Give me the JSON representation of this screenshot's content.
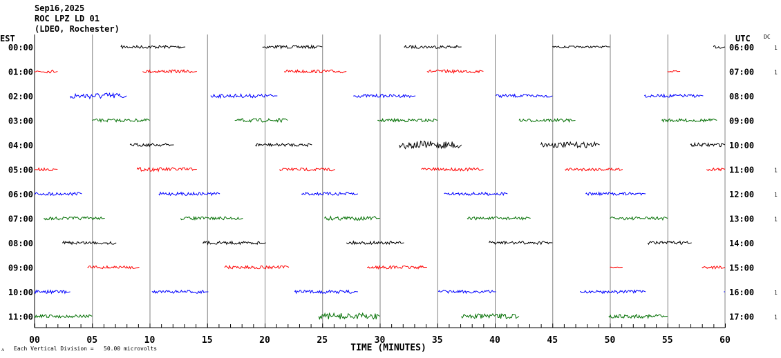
{
  "header": {
    "date": "Sep16,2025",
    "station": "ROC LPZ LD 01",
    "network": "(LDEO, Rochester)"
  },
  "left_axis_label": "EST",
  "right_axis_label": "UTC",
  "dc_label": "DC",
  "footer": {
    "scale_text": "Each Vertical Division =   50.00 microvolts",
    "corner_mark": "ᴧ"
  },
  "colors": {
    "trace_cycle": [
      "#000000",
      "#ff0000",
      "#0000ff",
      "#006e00"
    ],
    "grid": "#808080"
  },
  "chart_data": {
    "type": "line",
    "title": "ROC LPZ LD 01 helicorder",
    "xlabel": "TIME (MINUTES)",
    "xlim": [
      0,
      60
    ],
    "x_ticks": [
      "00",
      "05",
      "10",
      "15",
      "20",
      "25",
      "30",
      "35",
      "40",
      "45",
      "50",
      "55",
      "60"
    ],
    "rows": [
      {
        "est": "00:00",
        "utc": "06:00",
        "dc": "1",
        "segments": [
          [
            7.5,
            13.1,
            1
          ],
          [
            19.8,
            25,
            1
          ],
          [
            32.1,
            37.1,
            1
          ],
          [
            45,
            50,
            0.6
          ],
          [
            59,
            60,
            1
          ]
        ]
      },
      {
        "est": "01:00",
        "utc": "07:00",
        "dc": "1",
        "segments": [
          [
            0,
            2,
            1
          ],
          [
            9.4,
            14.1,
            1
          ],
          [
            21.7,
            27.1,
            1
          ],
          [
            34.1,
            39,
            1
          ],
          [
            55,
            56.1,
            0.5
          ]
        ]
      },
      {
        "est": "02:00",
        "utc": "08:00",
        "dc": "",
        "segments": [
          [
            3.1,
            8,
            2
          ],
          [
            15.3,
            21.1,
            1.2
          ],
          [
            27.7,
            33.1,
            1
          ],
          [
            40.1,
            45,
            1
          ],
          [
            53,
            58.1,
            1
          ]
        ]
      },
      {
        "est": "03:00",
        "utc": "09:00",
        "dc": "",
        "segments": [
          [
            5,
            10,
            1
          ],
          [
            17.4,
            22,
            1.2
          ],
          [
            29.8,
            35,
            1
          ],
          [
            42.1,
            47,
            1
          ],
          [
            54.5,
            59.3,
            1
          ]
        ]
      },
      {
        "est": "04:00",
        "utc": "10:00",
        "dc": "",
        "segments": [
          [
            8.3,
            12.1,
            1
          ],
          [
            19.2,
            24.1,
            1
          ],
          [
            31.7,
            37.1,
            2.5
          ],
          [
            44,
            49.1,
            1.8
          ],
          [
            57,
            60,
            1.2
          ]
        ]
      },
      {
        "est": "05:00",
        "utc": "11:00",
        "dc": "1",
        "segments": [
          [
            0,
            2,
            1
          ],
          [
            8.9,
            14.1,
            1.2
          ],
          [
            21.3,
            26.1,
            1
          ],
          [
            33.6,
            39,
            1
          ],
          [
            46.1,
            51.1,
            1
          ],
          [
            58.4,
            60,
            1
          ]
        ]
      },
      {
        "est": "06:00",
        "utc": "12:00",
        "dc": "1",
        "segments": [
          [
            0,
            4.1,
            1
          ],
          [
            10.8,
            16.1,
            1
          ],
          [
            23.2,
            28.1,
            1
          ],
          [
            35.6,
            41.1,
            1
          ],
          [
            47.9,
            53.1,
            1
          ]
        ]
      },
      {
        "est": "07:00",
        "utc": "13:00",
        "dc": "1",
        "segments": [
          [
            0.8,
            6.1,
            1
          ],
          [
            12.7,
            18.1,
            1
          ],
          [
            25.2,
            30,
            1.3
          ],
          [
            37.6,
            43.1,
            1
          ],
          [
            50,
            55,
            1
          ]
        ]
      },
      {
        "est": "08:00",
        "utc": "14:00",
        "dc": "",
        "segments": [
          [
            2.4,
            7.1,
            1
          ],
          [
            14.6,
            20.1,
            1
          ],
          [
            27.1,
            32.1,
            1
          ],
          [
            39.5,
            45,
            1
          ],
          [
            53.3,
            57.1,
            1
          ]
        ]
      },
      {
        "est": "09:00",
        "utc": "15:00",
        "dc": "",
        "segments": [
          [
            4.6,
            9.1,
            1
          ],
          [
            16.5,
            22.1,
            1
          ],
          [
            28.9,
            34.1,
            1
          ],
          [
            50,
            51.1,
            0.3
          ],
          [
            58,
            60,
            1
          ]
        ]
      },
      {
        "est": "10:00",
        "utc": "16:00",
        "dc": "1",
        "segments": [
          [
            0,
            3.1,
            1
          ],
          [
            10.2,
            15.1,
            1
          ],
          [
            22.6,
            28.1,
            1
          ],
          [
            35.1,
            40.1,
            1
          ],
          [
            47.4,
            53.1,
            1
          ],
          [
            59.9,
            60,
            1
          ]
        ]
      },
      {
        "est": "11:00",
        "utc": "17:00",
        "dc": "1",
        "segments": [
          [
            0,
            5,
            1
          ],
          [
            24.7,
            30,
            2
          ],
          [
            37.1,
            42.1,
            1.6
          ],
          [
            49.9,
            55,
            1.2
          ]
        ]
      }
    ]
  }
}
